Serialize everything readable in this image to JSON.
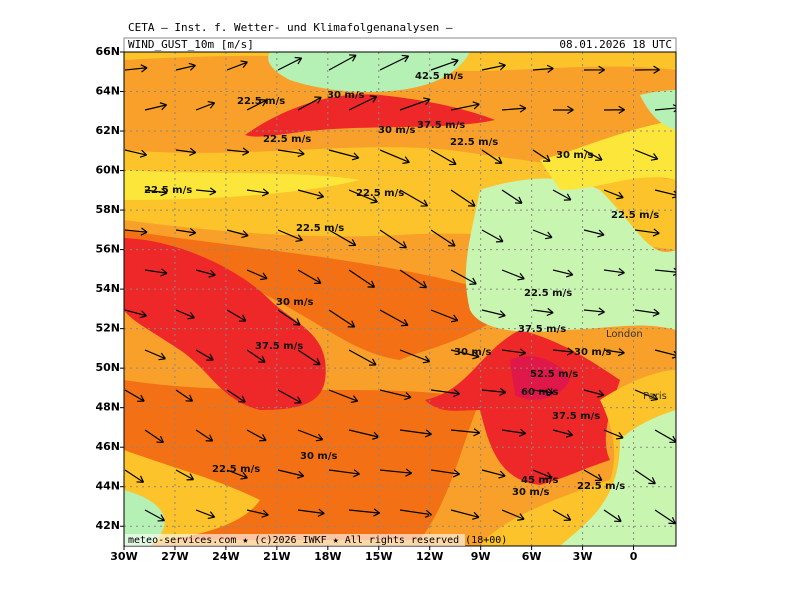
{
  "chart_data": {
    "type": "map",
    "header": "CETA – Inst. f. Wetter- und Klimafolgenanalysen –",
    "title": "WIND_GUST_10m [m/s]",
    "valid_time": "08.01.2026 18 UTC",
    "footer": "meteo-services.com ★ (c)2026 IWKF ★ All rights reserved (18+00)",
    "xlim": [
      -30,
      2.5
    ],
    "ylim": [
      41,
      66
    ],
    "xticks": [
      {
        "value": -30,
        "label": "30W"
      },
      {
        "value": -27,
        "label": "27W"
      },
      {
        "value": -24,
        "label": "24W"
      },
      {
        "value": -21,
        "label": "21W"
      },
      {
        "value": -18,
        "label": "18W"
      },
      {
        "value": -15,
        "label": "15W"
      },
      {
        "value": -12,
        "label": "12W"
      },
      {
        "value": -9,
        "label": "9W"
      },
      {
        "value": -6,
        "label": "6W"
      },
      {
        "value": -3,
        "label": "3W"
      },
      0
    ],
    "yticks": [
      {
        "value": 42,
        "label": "42N"
      },
      {
        "value": 44,
        "label": "44N"
      },
      {
        "value": 46,
        "label": "46N"
      },
      {
        "value": 48,
        "label": "48N"
      },
      {
        "value": 50,
        "label": "50N"
      },
      {
        "value": 52,
        "label": "52N"
      },
      {
        "value": 54,
        "label": "54N"
      },
      {
        "value": 56,
        "label": "56N"
      },
      {
        "value": 58,
        "label": "58N"
      },
      {
        "value": 60,
        "label": "60N"
      },
      {
        "value": 62,
        "label": "62N"
      },
      {
        "value": 64,
        "label": "64N"
      },
      {
        "value": 66,
        "label": "66N"
      }
    ],
    "grid": true,
    "contour_labels": [
      "42.5 m/s",
      "22.5 m/s",
      "30 m/s",
      "30 m/s",
      "37.5 m/s",
      "22.5 m/s",
      "22.5 m/s",
      "30 m/s",
      "22.5 m/s",
      "22.5 m/s",
      "22.5 m/s",
      "22.5 m/s",
      "22.5 m/s",
      "30 m/s",
      "37.5 m/s",
      "37.5 m/s",
      "30 m/s",
      "30 m/s",
      "52.5 m/s",
      "60 m/s",
      "37.5 m/s",
      "22.5 m/s",
      "30 m/s",
      "45 m/s",
      "30 m/s",
      "22.5 m/s"
    ],
    "cities": [
      "London",
      "Paris"
    ]
  }
}
